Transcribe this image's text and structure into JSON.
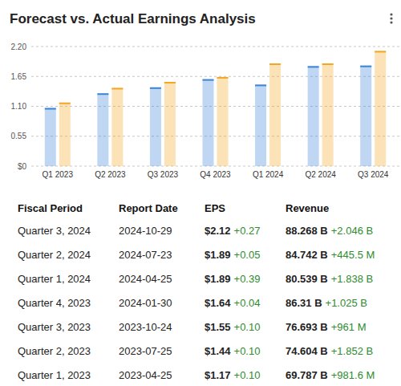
{
  "chart_data": {
    "type": "bar",
    "title": "Forecast vs. Actual Earnings Analysis",
    "categories": [
      "Q1 2023",
      "Q2 2023",
      "Q3 2023",
      "Q4 2023",
      "Q1 2024",
      "Q2 2024",
      "Q3 2024"
    ],
    "series": [
      {
        "color": "#3d85d8",
        "values": [
          1.07,
          1.34,
          1.45,
          1.6,
          1.5,
          1.84,
          1.85
        ]
      },
      {
        "color": "#f5a623",
        "values": [
          1.17,
          1.44,
          1.55,
          1.64,
          1.89,
          1.89,
          2.12
        ]
      }
    ],
    "ylim": [
      0,
      2.2
    ],
    "yticks": [
      {
        "value": 0,
        "label": "$0"
      },
      0.55,
      {
        "value": 1.1,
        "label": "1.10"
      },
      1.65,
      {
        "value": 2.2,
        "label": "2.20"
      }
    ],
    "grid": true
  },
  "table": {
    "columns": [
      "Fiscal Period",
      "Report Date",
      "EPS",
      "Revenue"
    ],
    "rows": [
      [
        "Quarter 3, 2024",
        "2024-10-29",
        "$2.12",
        "+0.27",
        "88.268 B",
        "+2.046 B"
      ],
      [
        "Quarter 2, 2024",
        "2024-07-23",
        "$1.89",
        "+0.05",
        "84.742 B",
        "+445.5 M"
      ],
      [
        "Quarter 1, 2024",
        "2024-04-25",
        "$1.89",
        "+0.39",
        "80.539 B",
        "+1.838 B"
      ],
      [
        "Quarter 4, 2023",
        "2024-01-30",
        "$1.64",
        "+0.04",
        "86.31 B",
        "+1.025 B"
      ],
      [
        "Quarter 3, 2023",
        "2023-10-24",
        "$1.55",
        "+0.10",
        "76.693 B",
        "+961 M"
      ],
      [
        "Quarter 2, 2023",
        "2023-07-25",
        "$1.44",
        "+0.10",
        "74.604 B",
        "+1.852 B"
      ],
      [
        "Quarter 1, 2023",
        "2023-04-25",
        "$1.17",
        "+0.10",
        "69.787 B",
        "+981.6 M"
      ]
    ]
  }
}
